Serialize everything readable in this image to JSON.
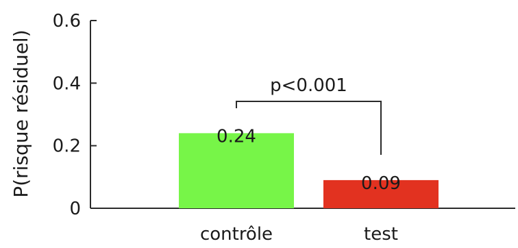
{
  "chart_data": {
    "type": "bar",
    "ylabel": "P(risque résiduel)",
    "xlabel": "",
    "title": "",
    "ylim": [
      0,
      0.6
    ],
    "yticks": [
      0,
      0.2,
      0.4,
      0.6
    ],
    "ytick_labels": [
      "0",
      "0.2",
      "0.4",
      "0.6"
    ],
    "categories": [
      "contrôle",
      "test"
    ],
    "values": [
      0.24,
      0.09
    ],
    "value_labels": [
      "0.24",
      "0.09"
    ],
    "colors": [
      "#77f548",
      "#e23220"
    ],
    "grid": false,
    "annotation": {
      "text": "p<0.001",
      "between": [
        "contrôle",
        "test"
      ]
    }
  }
}
